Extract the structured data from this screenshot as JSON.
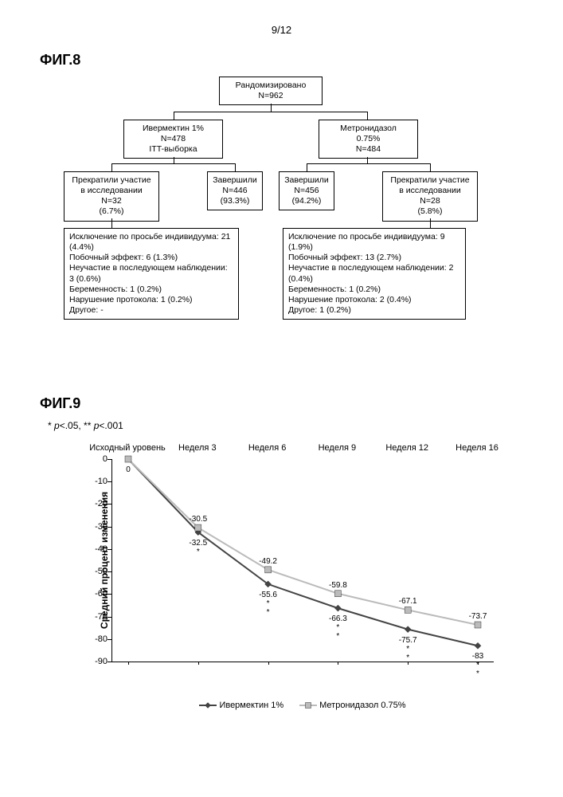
{
  "page_number": "9/12",
  "fig8": {
    "label": "ФИГ.8",
    "root": {
      "line1": "Рандомизировано",
      "line2": "N=962"
    },
    "armA": {
      "line1": "Ивермектин 1%",
      "line2": "N=478",
      "line3": "ITT-выборка"
    },
    "armB": {
      "line1": "Метронидазол",
      "line2": "0.75%",
      "line3": "N=484"
    },
    "discA_title": "Прекратили участие в исследовании",
    "discA_n": "N=32",
    "discA_pct": "(6.7%)",
    "compA_title": "Завершили",
    "compA_n": "N=446",
    "compA_pct": "(93.3%)",
    "compB_title": "Завершили",
    "compB_n": "N=456",
    "compB_pct": "(94.2%)",
    "discB_title": "Прекратили участие в исследовании",
    "discB_n": "N=28",
    "discB_pct": "(5.8%)",
    "reasonsA": [
      "Исключение по просьбе индивидуума: 21 (4.4%)",
      "Побочный эффект: 6 (1.3%)",
      "Неучастие в последующем наблюдении: 3 (0.6%)",
      "Беременность: 1 (0.2%)",
      "Нарушение протокола: 1 (0.2%)",
      "Другое: -"
    ],
    "reasonsB": [
      "Исключение по просьбе индивидуума: 9 (1.9%)",
      "Побочный эффект: 13 (2.7%)",
      "Неучастие в последующем наблюдении: 2 (0.4%)",
      "Беременность: 1 (0.2%)",
      "Нарушение протокола: 2 (0.4%)",
      "Другое: 1 (0.2%)"
    ]
  },
  "fig9": {
    "label": "ФИГ.9",
    "note_html": "* p<.05, ** p<.001",
    "y_axis_label": "Средний процент изменения",
    "x_categories": [
      "Исходный уровень",
      "Неделя 3",
      "Неделя 6",
      "Неделя 9",
      "Неделя 12",
      "Неделя 16"
    ],
    "y_ticks": [
      0,
      -10,
      -20,
      -30,
      -40,
      -50,
      -60,
      -70,
      -80,
      -90
    ],
    "series": [
      {
        "name": "Ивермектин 1%",
        "color": "#444444",
        "marker": "diamond",
        "values": [
          0,
          -32.5,
          -55.6,
          -66.3,
          -75.7,
          -83
        ],
        "sig": [
          "",
          "*",
          "*\n*",
          "*\n*",
          "*\n*",
          "*\n*"
        ],
        "label_side": "below"
      },
      {
        "name": "Метронидазол 0.75%",
        "color": "#bbbbbb",
        "marker": "square",
        "values": [
          0,
          -30.5,
          -49.2,
          -59.8,
          -67.1,
          -73.7
        ],
        "sig": [
          "",
          "",
          "",
          "",
          "",
          ""
        ],
        "label_side": "above"
      }
    ],
    "ylim": [
      0,
      -90
    ],
    "colors": {
      "axis": "#000000",
      "bg": "#ffffff"
    }
  }
}
